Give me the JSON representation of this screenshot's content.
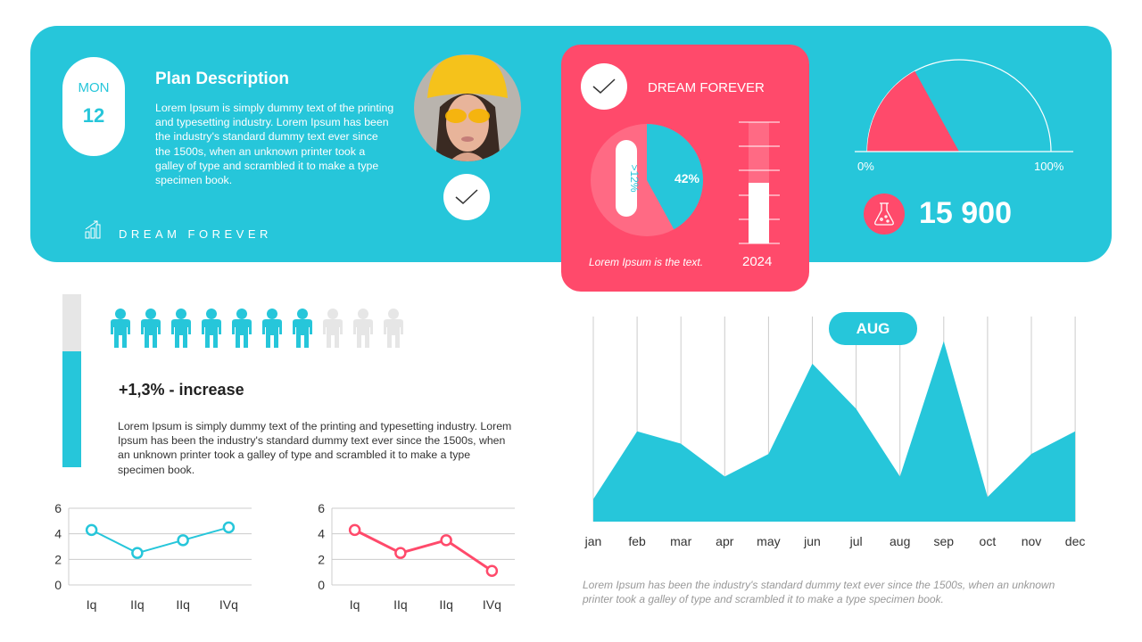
{
  "colors": {
    "cyan": "#26C6DA",
    "pink": "#FF4A6B",
    "grey": "#E6E6E6"
  },
  "header": {
    "date": {
      "day": "MON",
      "number": "12"
    },
    "plan_title": "Plan Description",
    "plan_text": "Lorem Ipsum is simply dummy text of the printing and typesetting industry. Lorem Ipsum has been the industry's standard dummy text ever since the 1500s, when an unknown printer took a galley of type and scrambled it to make a type specimen book.",
    "tagline": "DREAM FOREVER",
    "tagline_icon": "bar-chart-growth-icon"
  },
  "pink_card": {
    "title": "DREAM FOREVER",
    "pie_label": "42%",
    "pie_value": 42,
    "pill_label": ">12%",
    "caption": "Lorem Ipsum is the text.",
    "bar_year": "2024",
    "bar_fill_percent": 50
  },
  "gauge": {
    "min_label": "0%",
    "max_label": "100%",
    "value_percent": 34,
    "stat": "15 900",
    "stat_icon": "flask-icon"
  },
  "people": {
    "total": 10,
    "highlighted": 7,
    "increase": "+1,3% - increase",
    "vertical_bar_percent": 67,
    "text": "Lorem Ipsum is simply dummy text of the printing and typesetting industry. Lorem Ipsum has been the industry's standard dummy text ever since the 1500s, when an unknown printer took a galley of type and scrambled it to make a type specimen book."
  },
  "area_caption": "Lorem Ipsum has been the industry's standard dummy text ever since the 1500s, when an unknown printer took a galley of type and scrambled it to make a type specimen book.",
  "chart_data": [
    {
      "type": "line",
      "categories": [
        "Iq",
        "IIq",
        "IIq",
        "IVq"
      ],
      "values": [
        4.3,
        2.5,
        3.5,
        4.5
      ],
      "ylim": [
        0,
        6
      ],
      "yticks": [
        0,
        2,
        4,
        6
      ],
      "grid": true,
      "color": "#26C6DA"
    },
    {
      "type": "line",
      "categories": [
        "Iq",
        "IIq",
        "IIq",
        "IVq"
      ],
      "values": [
        4.3,
        2.5,
        3.5,
        1.1
      ],
      "ylim": [
        0,
        6
      ],
      "yticks": [
        0,
        2,
        4,
        6
      ],
      "grid": true,
      "color": "#FF4A6B"
    },
    {
      "type": "area",
      "categories": [
        "jan",
        "feb",
        "mar",
        "apr",
        "may",
        "jun",
        "jul",
        "aug",
        "sep",
        "oct",
        "nov",
        "dec"
      ],
      "values": [
        11,
        44,
        38,
        22,
        33,
        77,
        55,
        22,
        88,
        12,
        33,
        44
      ],
      "ylim": [
        0,
        100
      ],
      "highlight_label": "AUG",
      "grid": "vertical",
      "color": "#26C6DA"
    }
  ]
}
